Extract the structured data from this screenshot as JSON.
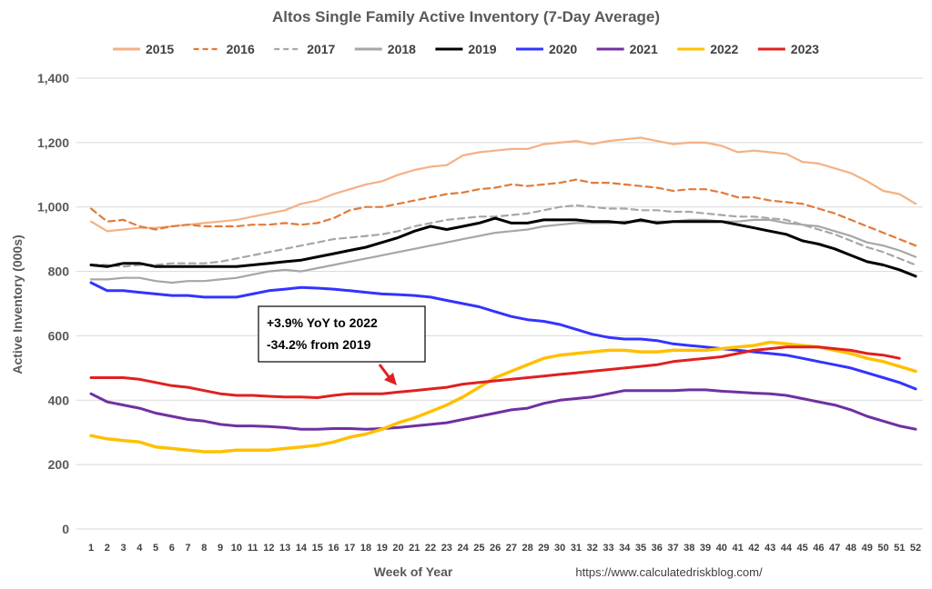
{
  "chart_data": {
    "type": "line",
    "title": "Altos Single Family Active Inventory (7-Day Average)",
    "xlabel": "Week of Year",
    "ylabel": "Active Inventory (000s)",
    "source": "https://www.calculatedriskblog.com/",
    "ylim": [
      0,
      1400
    ],
    "yticks": [
      0,
      200,
      400,
      600,
      800,
      1000,
      1200,
      1400
    ],
    "ytick_labels": [
      "0",
      "200",
      "400",
      "600",
      "800",
      "1,000",
      "1,200",
      "1,400"
    ],
    "x": [
      1,
      2,
      3,
      4,
      5,
      6,
      7,
      8,
      9,
      10,
      11,
      12,
      13,
      14,
      15,
      16,
      17,
      18,
      19,
      20,
      21,
      22,
      23,
      24,
      25,
      26,
      27,
      28,
      29,
      30,
      31,
      32,
      33,
      34,
      35,
      36,
      37,
      38,
      39,
      40,
      41,
      42,
      43,
      44,
      45,
      46,
      47,
      48,
      49,
      50,
      51,
      52
    ],
    "grid": "horizontal",
    "legend_position": "top",
    "annotation": {
      "lines": [
        "+3.9% YoY to 2022",
        "-34.2% from 2019"
      ],
      "points_to_week": 20,
      "arrow_color": "#e02020"
    },
    "series": [
      {
        "name": "2015",
        "color": "#f4b183",
        "dash": "solid",
        "values": [
          955,
          925,
          930,
          935,
          935,
          940,
          945,
          950,
          955,
          960,
          970,
          980,
          990,
          1010,
          1020,
          1040,
          1055,
          1070,
          1080,
          1100,
          1115,
          1125,
          1130,
          1160,
          1170,
          1175,
          1180,
          1180,
          1195,
          1200,
          1205,
          1195,
          1205,
          1210,
          1215,
          1205,
          1195,
          1200,
          1200,
          1190,
          1170,
          1175,
          1170,
          1165,
          1140,
          1135,
          1120,
          1105,
          1080,
          1050,
          1040,
          1010
        ]
      },
      {
        "name": "2016",
        "color": "#e07b39",
        "dash": "dashed",
        "values": [
          995,
          955,
          960,
          940,
          930,
          940,
          945,
          940,
          940,
          940,
          945,
          945,
          950,
          945,
          950,
          965,
          990,
          1000,
          1000,
          1010,
          1020,
          1030,
          1040,
          1045,
          1055,
          1060,
          1070,
          1065,
          1070,
          1075,
          1085,
          1075,
          1075,
          1070,
          1065,
          1060,
          1050,
          1055,
          1055,
          1045,
          1030,
          1030,
          1020,
          1015,
          1010,
          995,
          980,
          960,
          940,
          920,
          900,
          880
        ]
      },
      {
        "name": "2017",
        "color": "#a6a6a6",
        "dash": "dashed",
        "values": [
          820,
          820,
          815,
          820,
          820,
          825,
          825,
          825,
          830,
          840,
          850,
          860,
          870,
          880,
          890,
          900,
          905,
          910,
          915,
          925,
          940,
          950,
          960,
          965,
          970,
          970,
          975,
          980,
          990,
          1000,
          1005,
          1000,
          995,
          995,
          990,
          990,
          985,
          985,
          980,
          975,
          970,
          970,
          965,
          960,
          945,
          930,
          915,
          895,
          875,
          860,
          840,
          820
        ]
      },
      {
        "name": "2018",
        "color": "#a6a6a6",
        "dash": "solid",
        "values": [
          775,
          775,
          780,
          780,
          770,
          765,
          770,
          770,
          775,
          780,
          790,
          800,
          805,
          800,
          810,
          820,
          830,
          840,
          850,
          860,
          870,
          880,
          890,
          900,
          910,
          920,
          925,
          930,
          940,
          945,
          950,
          950,
          950,
          955,
          955,
          955,
          955,
          960,
          960,
          955,
          955,
          960,
          960,
          950,
          945,
          940,
          925,
          910,
          890,
          880,
          865,
          845
        ]
      },
      {
        "name": "2019",
        "color": "#000000",
        "dash": "solid",
        "values": [
          820,
          815,
          825,
          825,
          815,
          815,
          815,
          815,
          815,
          815,
          820,
          825,
          830,
          835,
          845,
          855,
          865,
          875,
          890,
          905,
          925,
          940,
          930,
          940,
          950,
          965,
          950,
          950,
          960,
          960,
          960,
          955,
          955,
          950,
          960,
          950,
          955,
          955,
          955,
          955,
          945,
          935,
          925,
          915,
          895,
          885,
          870,
          850,
          830,
          820,
          805,
          785
        ]
      },
      {
        "name": "2020",
        "color": "#3333ff",
        "dash": "solid",
        "values": [
          765,
          740,
          740,
          735,
          730,
          725,
          725,
          720,
          720,
          720,
          730,
          740,
          745,
          750,
          748,
          745,
          740,
          735,
          730,
          728,
          725,
          720,
          710,
          700,
          690,
          675,
          660,
          650,
          645,
          635,
          620,
          605,
          595,
          590,
          590,
          585,
          575,
          570,
          565,
          560,
          555,
          550,
          545,
          540,
          530,
          520,
          510,
          500,
          485,
          470,
          455,
          435
        ]
      },
      {
        "name": "2021",
        "color": "#7030a0",
        "dash": "solid",
        "values": [
          420,
          395,
          385,
          375,
          360,
          350,
          340,
          335,
          325,
          320,
          320,
          318,
          315,
          310,
          310,
          312,
          312,
          310,
          312,
          315,
          320,
          325,
          330,
          340,
          350,
          360,
          370,
          375,
          390,
          400,
          405,
          410,
          420,
          430,
          430,
          430,
          430,
          432,
          432,
          428,
          425,
          422,
          420,
          415,
          405,
          395,
          385,
          370,
          350,
          335,
          320,
          310
        ]
      },
      {
        "name": "2022",
        "color": "#ffc000",
        "dash": "solid",
        "values": [
          290,
          280,
          275,
          270,
          255,
          250,
          245,
          240,
          240,
          245,
          245,
          245,
          250,
          255,
          260,
          270,
          285,
          295,
          310,
          330,
          345,
          365,
          385,
          410,
          440,
          470,
          490,
          510,
          530,
          540,
          545,
          550,
          555,
          555,
          550,
          550,
          555,
          555,
          555,
          560,
          565,
          570,
          580,
          575,
          570,
          565,
          555,
          545,
          530,
          520,
          505,
          490
        ]
      },
      {
        "name": "2023",
        "color": "#e02020",
        "dash": "solid",
        "values": [
          470,
          470,
          470,
          465,
          455,
          445,
          440,
          430,
          420,
          415,
          415,
          412,
          410,
          410,
          408,
          415,
          420,
          420,
          420,
          425,
          430,
          435,
          440,
          450,
          455,
          460,
          465,
          470,
          475,
          480,
          485,
          490,
          495,
          500,
          505,
          510,
          520,
          525,
          530,
          535,
          545,
          555,
          560,
          565,
          565,
          565,
          560,
          555,
          545,
          540,
          530,
          null
        ]
      }
    ]
  }
}
